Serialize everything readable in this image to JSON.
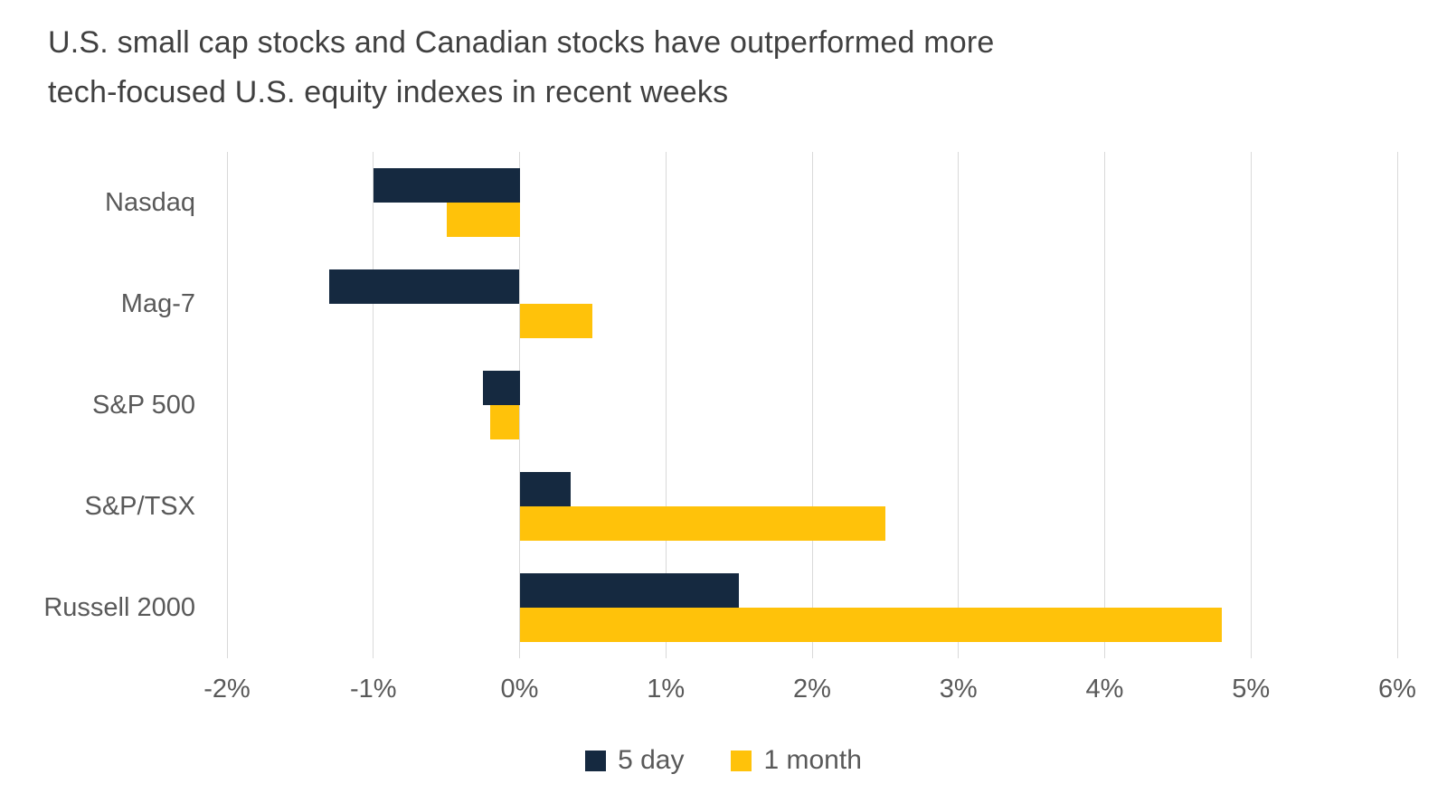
{
  "chart_data": {
    "type": "bar",
    "orientation": "horizontal",
    "title": "U.S. small cap stocks and Canadian stocks have outperformed more tech-focused U.S. equity indexes in recent weeks",
    "title_lines": [
      "U.S. small cap stocks and Canadian stocks have outperformed more",
      "tech-focused U.S. equity indexes in recent weeks"
    ],
    "categories": [
      "Nasdaq",
      "Mag-7",
      "S&P 500",
      "S&P/TSX",
      "Russell 2000"
    ],
    "series": [
      {
        "name": "5 day",
        "color": "#152940",
        "values": [
          -1.0,
          -1.3,
          -0.25,
          0.35,
          1.5
        ]
      },
      {
        "name": "1 month",
        "color": "#FFC20A",
        "values": [
          -0.5,
          0.5,
          -0.2,
          2.5,
          4.8
        ]
      }
    ],
    "unit": "%",
    "xlim": [
      -2,
      6
    ],
    "xticks": {
      "values": [
        -2,
        -1,
        0,
        1,
        2,
        3,
        4,
        5,
        6
      ],
      "labels": [
        "-2%",
        "-1%",
        "0%",
        "1%",
        "2%",
        "3%",
        "4%",
        "5%",
        "6%"
      ]
    },
    "grid": "vertical",
    "legend_position": "bottom"
  },
  "colors": {
    "title_text": "#404040",
    "axis_text": "#595959",
    "gridline": "#D9D9D9",
    "background": "#FFFFFF"
  }
}
